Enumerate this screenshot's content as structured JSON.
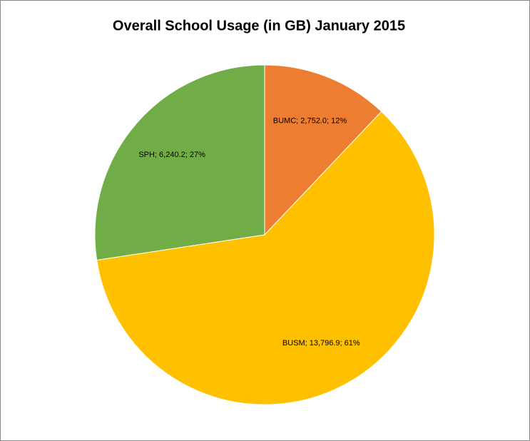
{
  "chart_data": {
    "type": "pie",
    "title": "Overall School Usage (in GB) January 2015",
    "values": [
      2752.0,
      13796.9,
      6240.2
    ],
    "value_labels": [
      "BUMC; 2,752.0; 12%",
      "BUSM; 13,796.9; 61%",
      "SPH; 6,240.2; 27%"
    ],
    "colors": [
      "#ed7d31",
      "#ffc000",
      "#70ad47"
    ]
  }
}
